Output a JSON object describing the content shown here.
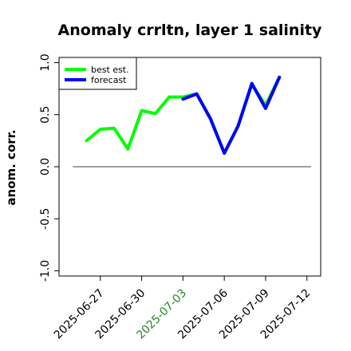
{
  "chart_data": {
    "type": "line",
    "title": "Anomaly crrltn, layer 1 salinity",
    "ylabel": "anom. corr.",
    "xlabel": "",
    "ylim": [
      -1.05,
      1.05
    ],
    "yticks": [
      "-1.0",
      "-0.5",
      "0.0",
      "0.5",
      "1.0"
    ],
    "ytick_values": [
      -1.0,
      -0.5,
      0.0,
      0.5,
      1.0
    ],
    "xticks": [
      {
        "label": "2025-06-27",
        "color": "#000000"
      },
      {
        "label": "2025-06-30",
        "color": "#000000"
      },
      {
        "label": "2025-07-03",
        "color": "#228B22"
      },
      {
        "label": "2025-07-06",
        "color": "#000000"
      },
      {
        "label": "2025-07-09",
        "color": "#000000"
      },
      {
        "label": "2025-07-12",
        "color": "#000000"
      }
    ],
    "x_tick_dates": [
      "2025-06-27",
      "2025-06-30",
      "2025-07-03",
      "2025-07-06",
      "2025-07-09",
      "2025-07-12"
    ],
    "x_range": [
      "2025-06-24",
      "2025-07-13"
    ],
    "reference_line": 0.0,
    "legend_position": "top-left",
    "series": [
      {
        "name": "best est.",
        "color": "#00ff00",
        "x": [
          "2025-06-26",
          "2025-06-27",
          "2025-06-28",
          "2025-06-29",
          "2025-06-30",
          "2025-07-01",
          "2025-07-02",
          "2025-07-03",
          "2025-07-04",
          "2025-07-05",
          "2025-07-06",
          "2025-07-07",
          "2025-07-08",
          "2025-07-09",
          "2025-07-10"
        ],
        "values": [
          0.25,
          0.36,
          0.37,
          0.17,
          0.54,
          0.51,
          0.67,
          0.67,
          0.7,
          0.46,
          0.13,
          0.39,
          0.79,
          0.59,
          0.86
        ]
      },
      {
        "name": "forecast",
        "color": "#0000ff",
        "x": [
          "2025-07-03",
          "2025-07-04",
          "2025-07-05",
          "2025-07-06",
          "2025-07-07",
          "2025-07-08",
          "2025-07-09",
          "2025-07-10"
        ],
        "values": [
          0.65,
          0.7,
          0.46,
          0.13,
          0.39,
          0.8,
          0.56,
          0.86
        ]
      }
    ]
  }
}
